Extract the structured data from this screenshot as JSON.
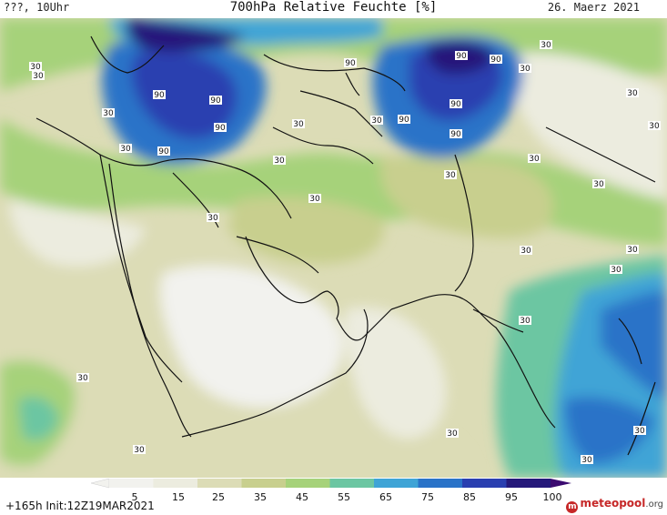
{
  "header": {
    "left": "???, 10Uhr",
    "title": "700hPa Relative Feuchte [%]",
    "right": "26. Maerz 2021"
  },
  "map": {
    "contour_labels": [
      "30",
      "30",
      "30",
      "90",
      "90",
      "90",
      "90",
      "90",
      "90",
      "90",
      "90",
      "30",
      "30",
      "30",
      "30",
      "30",
      "30",
      "30",
      "90",
      "90",
      "30",
      "30",
      "30",
      "30",
      "30",
      "30",
      "30",
      "30",
      "30",
      "30",
      "30",
      "30",
      "30",
      "30",
      "30"
    ]
  },
  "legend": {
    "ticks": [
      "5",
      "15",
      "25",
      "35",
      "45",
      "55",
      "65",
      "75",
      "85",
      "95",
      "100"
    ],
    "colors": [
      "#f2f2ee",
      "#ececdf",
      "#dcdcb6",
      "#c8cf8e",
      "#a6d27a",
      "#6cc6a2",
      "#3fa4d6",
      "#2a73c8",
      "#2a3fb0",
      "#25197a",
      "#3b0a70"
    ]
  },
  "footer": {
    "run_info": "+165h  Init:12Z19MAR2021",
    "brand": "meteopool",
    "brand_tld": ".org",
    "brand_color": "#c62828"
  }
}
